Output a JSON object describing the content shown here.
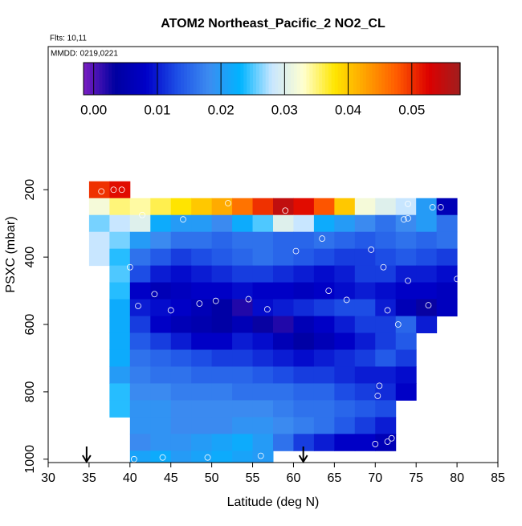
{
  "chart_data": {
    "type": "heatmap",
    "title": "ATOM2 Northeast_Pacific_2 NO2_CL",
    "flights_note": "Flts: 10,11",
    "dates_note": "MMDD: 0219,0221",
    "xlabel": "Latitude (deg N)",
    "ylabel": "PSXC (mbar)",
    "xlim": [
      30,
      85
    ],
    "xticks": [
      30,
      35,
      40,
      45,
      50,
      55,
      60,
      65,
      70,
      75,
      80,
      85
    ],
    "ylim": [
      1010,
      -225
    ],
    "yticks": [
      200,
      400,
      600,
      800,
      1000
    ],
    "x_edges": [
      35,
      37.5,
      40,
      42.5,
      45,
      47.5,
      50,
      52.5,
      55,
      57.5,
      60,
      62.5,
      65,
      67.5,
      70,
      72.5,
      75,
      77.5,
      80
    ],
    "y_edges": [
      175,
      225,
      275,
      325,
      375,
      425,
      475,
      525,
      575,
      625,
      675,
      725,
      775,
      825,
      875,
      925,
      975,
      1010
    ],
    "values": [
      [
        0.05,
        0.052,
        null,
        null,
        null,
        null,
        null,
        null,
        null,
        null,
        null,
        null,
        null,
        null,
        null,
        null,
        null,
        null
      ],
      [
        0.032,
        0.035,
        0.034,
        0.036,
        0.038,
        0.04,
        0.042,
        0.046,
        0.05,
        0.055,
        0.052,
        0.048,
        0.04,
        0.032,
        0.03,
        0.028,
        0.02,
        0.006
      ],
      [
        0.026,
        0.028,
        0.03,
        0.022,
        0.02,
        0.02,
        0.018,
        0.022,
        0.025,
        0.03,
        0.028,
        0.022,
        0.02,
        0.018,
        0.016,
        0.018,
        0.02,
        0.016
      ],
      [
        0.028,
        0.026,
        0.02,
        0.018,
        0.016,
        0.016,
        0.015,
        0.016,
        0.016,
        0.015,
        0.015,
        0.016,
        0.015,
        0.014,
        0.015,
        0.016,
        0.015,
        0.016
      ],
      [
        0.028,
        0.024,
        0.016,
        0.014,
        0.012,
        0.013,
        0.014,
        0.015,
        0.016,
        0.015,
        0.014,
        0.013,
        0.012,
        0.012,
        0.013,
        0.014,
        0.013,
        0.012
      ],
      [
        null,
        0.025,
        0.013,
        0.01,
        0.009,
        0.01,
        0.011,
        0.012,
        0.012,
        0.011,
        0.01,
        0.009,
        0.01,
        0.012,
        0.012,
        0.01,
        0.01,
        0.009
      ],
      [
        null,
        0.024,
        0.008,
        0.006,
        0.007,
        0.008,
        0.008,
        0.009,
        0.008,
        0.008,
        0.007,
        0.008,
        0.009,
        0.01,
        0.009,
        0.008,
        0.008,
        0.007
      ],
      [
        null,
        0.022,
        0.01,
        0.009,
        0.008,
        0.006,
        0.004,
        0.002,
        0.009,
        0.01,
        0.011,
        0.012,
        0.013,
        0.013,
        0.01,
        0.006,
        0.003,
        0.007
      ],
      [
        null,
        0.022,
        0.012,
        0.008,
        0.006,
        0.005,
        0.004,
        0.006,
        0.003,
        0.002,
        0.006,
        0.008,
        0.01,
        0.012,
        0.012,
        0.015,
        0.01,
        null
      ],
      [
        null,
        0.022,
        0.014,
        0.012,
        0.01,
        0.008,
        0.008,
        0.01,
        0.009,
        0.006,
        0.004,
        0.006,
        0.008,
        0.01,
        0.012,
        0.014,
        null,
        null
      ],
      [
        null,
        0.022,
        0.016,
        0.015,
        0.014,
        0.013,
        0.012,
        0.012,
        0.011,
        0.01,
        0.009,
        0.01,
        0.011,
        0.012,
        0.014,
        0.012,
        null,
        null
      ],
      [
        null,
        0.02,
        0.017,
        0.016,
        0.016,
        0.015,
        0.015,
        0.015,
        0.014,
        0.013,
        0.012,
        0.012,
        0.011,
        0.01,
        0.01,
        0.009,
        null,
        null
      ],
      [
        null,
        0.024,
        0.018,
        0.018,
        0.017,
        0.017,
        0.017,
        0.016,
        0.016,
        0.016,
        0.015,
        0.015,
        0.013,
        0.012,
        0.011,
        0.008,
        null,
        null
      ],
      [
        null,
        0.024,
        0.019,
        0.019,
        0.018,
        0.018,
        0.018,
        0.018,
        0.018,
        0.017,
        0.016,
        0.016,
        0.015,
        0.014,
        0.013,
        null,
        null,
        null
      ],
      [
        null,
        null,
        0.019,
        0.019,
        0.018,
        0.018,
        0.018,
        0.019,
        0.019,
        0.018,
        0.017,
        0.016,
        0.014,
        0.012,
        0.01,
        null,
        null,
        null
      ],
      [
        null,
        null,
        0.018,
        0.019,
        0.019,
        0.02,
        0.021,
        0.022,
        0.02,
        0.016,
        0.012,
        0.01,
        0.008,
        0.008,
        0.006,
        null,
        null,
        null
      ],
      [
        null,
        null,
        0.021,
        0.022,
        0.02,
        0.021,
        0.022,
        0.021,
        0.02,
        null,
        null,
        null,
        null,
        null,
        null,
        null,
        null,
        null
      ]
    ],
    "colormap": [
      "#7a1fc2",
      "#0000a0",
      "#0000c8",
      "#1e50e6",
      "#3c8cf0",
      "#00b4ff",
      "#c8e6ff",
      "#ffffd0",
      "#ffe600",
      "#ffa000",
      "#ff5a00",
      "#dc0000",
      "#a01e1e"
    ],
    "clim": [
      -0.0016,
      0.0576
    ],
    "cticks": [
      {
        "value": 0,
        "label": "0.00"
      },
      {
        "value": 0.01,
        "label": "0.01"
      },
      {
        "value": 0.02,
        "label": "0.02"
      },
      {
        "value": 0.03,
        "label": "0.03"
      },
      {
        "value": 0.04,
        "label": "0.04"
      },
      {
        "value": 0.05,
        "label": "0.05"
      }
    ],
    "points_x": [
      36.5,
      38,
      39,
      52,
      59,
      74,
      77,
      78,
      41.5,
      46.5,
      73.5,
      74,
      63.5,
      69.5,
      60.3,
      40,
      71,
      74,
      80,
      43,
      64.3,
      50.5,
      48.5,
      54.5,
      56.8,
      45,
      41,
      66.5,
      71.5,
      76.5,
      72.8,
      70.5,
      70.3,
      70,
      71.5,
      72,
      40.5,
      44,
      49.5,
      56
    ],
    "points_y": [
      205,
      200,
      200,
      240,
      262,
      242,
      252,
      252,
      275,
      288,
      288,
      285,
      345,
      378,
      382,
      430,
      430,
      470,
      465,
      510,
      500,
      530,
      538,
      525,
      555,
      558,
      545,
      527,
      558,
      543,
      600,
      782,
      812,
      955,
      948,
      938,
      1000,
      995,
      995,
      990
    ],
    "arrows_x": [
      34.7,
      61.2
    ]
  }
}
